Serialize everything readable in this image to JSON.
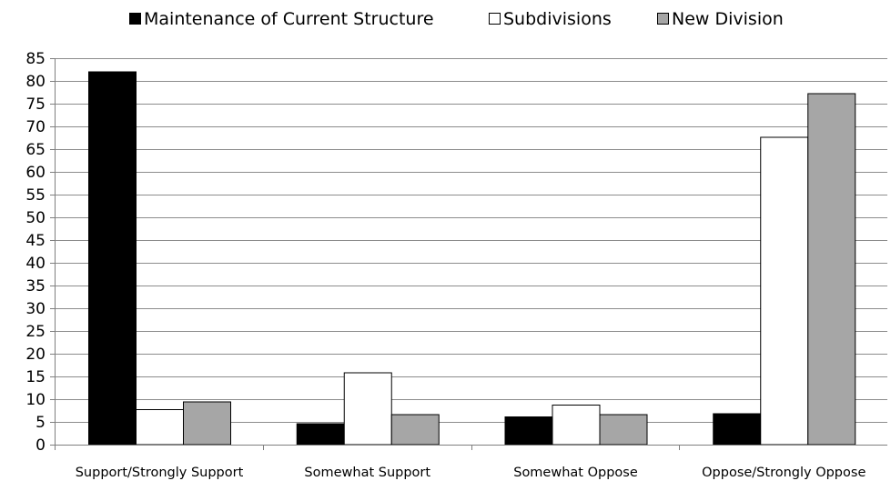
{
  "chart_data": {
    "type": "bar",
    "categories": [
      "Support/Strongly Support",
      "Somewhat Support",
      "Somewhat Oppose",
      "Oppose/Strongly Oppose"
    ],
    "series": [
      {
        "name": "Maintenance of Current Structure",
        "color": "#000000",
        "values": [
          82,
          4.6,
          6.1,
          6.8
        ]
      },
      {
        "name": "Subdivisions",
        "color": "#ffffff",
        "values": [
          7.7,
          15.8,
          8.7,
          67.6
        ]
      },
      {
        "name": "New Division",
        "color": "#a6a6a6",
        "values": [
          9.4,
          6.6,
          6.6,
          77.2
        ]
      }
    ],
    "ylim": [
      0,
      85
    ],
    "yticks": [
      "0",
      "5",
      "10",
      "15",
      "20",
      "25",
      "30",
      "35",
      "40",
      "45",
      "50",
      "55",
      "60",
      "65",
      "70",
      "75",
      "80",
      "85"
    ],
    "grid": true,
    "legend_position": "top"
  }
}
